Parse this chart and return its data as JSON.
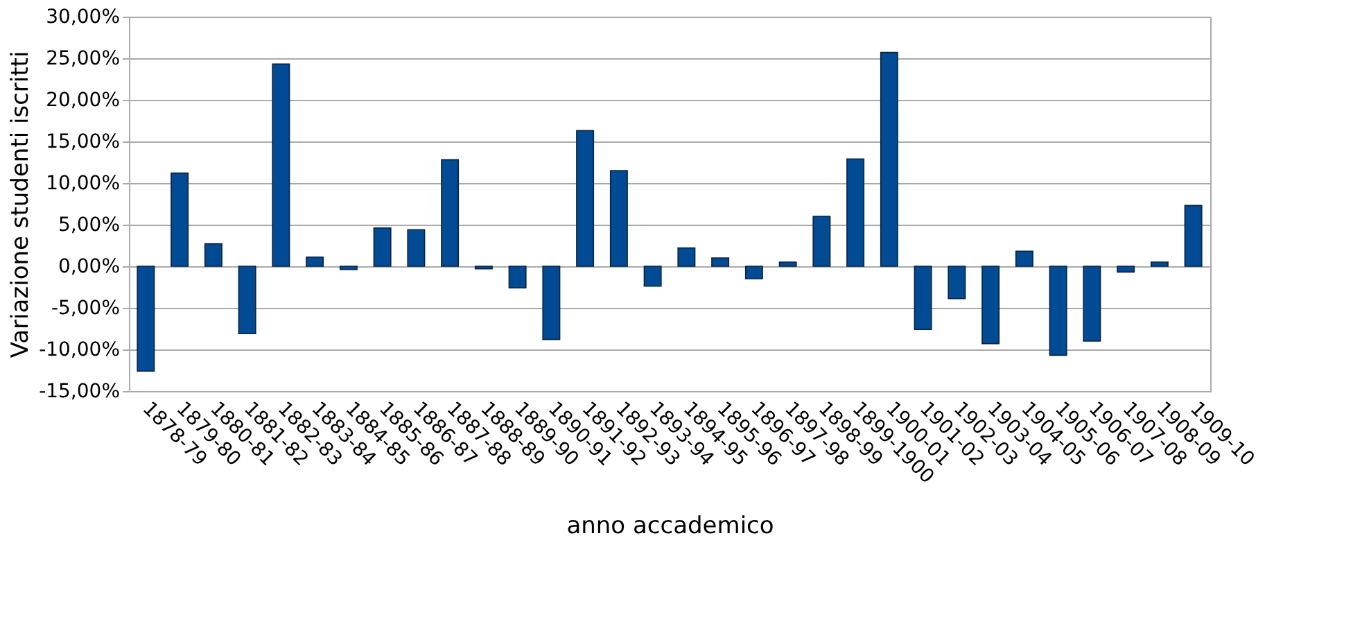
{
  "chart_data": {
    "type": "bar",
    "xlabel": "anno accademico",
    "ylabel": "Variazione studenti iscritti",
    "categories": [
      "1878-79",
      "1879-80",
      "1880-81",
      "1881-82",
      "1882-83",
      "1883-84",
      "1884-85",
      "1885-86",
      "1886-87",
      "1887-88",
      "1888-89",
      "1889-90",
      "1890-91",
      "1891-92",
      "1892-93",
      "1893-94",
      "1894-95",
      "1895-96",
      "1896-97",
      "1897-98",
      "1898-99",
      "1899-1900",
      "1900-01",
      "1901-02",
      "1902-03",
      "1903-04",
      "1904-05",
      "1905-06",
      "1906-07",
      "1907-08",
      "1908-09",
      "1909-10"
    ],
    "values": [
      -12.6,
      11.2,
      2.7,
      -8.1,
      24.3,
      1.1,
      -0.4,
      4.6,
      4.4,
      12.8,
      -0.3,
      -2.6,
      -8.8,
      16.3,
      11.5,
      -2.4,
      2.2,
      1.0,
      -1.5,
      0.5,
      6.0,
      12.9,
      25.7,
      -7.6,
      -3.9,
      -9.3,
      1.8,
      -10.7,
      -9.0,
      -0.7,
      0.5,
      7.3
    ],
    "color": "#004b93",
    "ylim": [
      -15,
      30
    ],
    "yticks": [
      {
        "value": -15,
        "label": "-15,00%"
      },
      {
        "value": -10,
        "label": "-10,00%"
      },
      {
        "value": -5,
        "label": "-5,00%"
      },
      {
        "value": 0,
        "label": "0,00%"
      },
      {
        "value": 5,
        "label": "5,00%"
      },
      {
        "value": 10,
        "label": "10,00%"
      },
      {
        "value": 15,
        "label": "15,00%"
      },
      {
        "value": 20,
        "label": "20,00%"
      },
      {
        "value": 25,
        "label": "25,00%"
      },
      {
        "value": 30,
        "label": "30,00%"
      }
    ],
    "grid": "y"
  }
}
